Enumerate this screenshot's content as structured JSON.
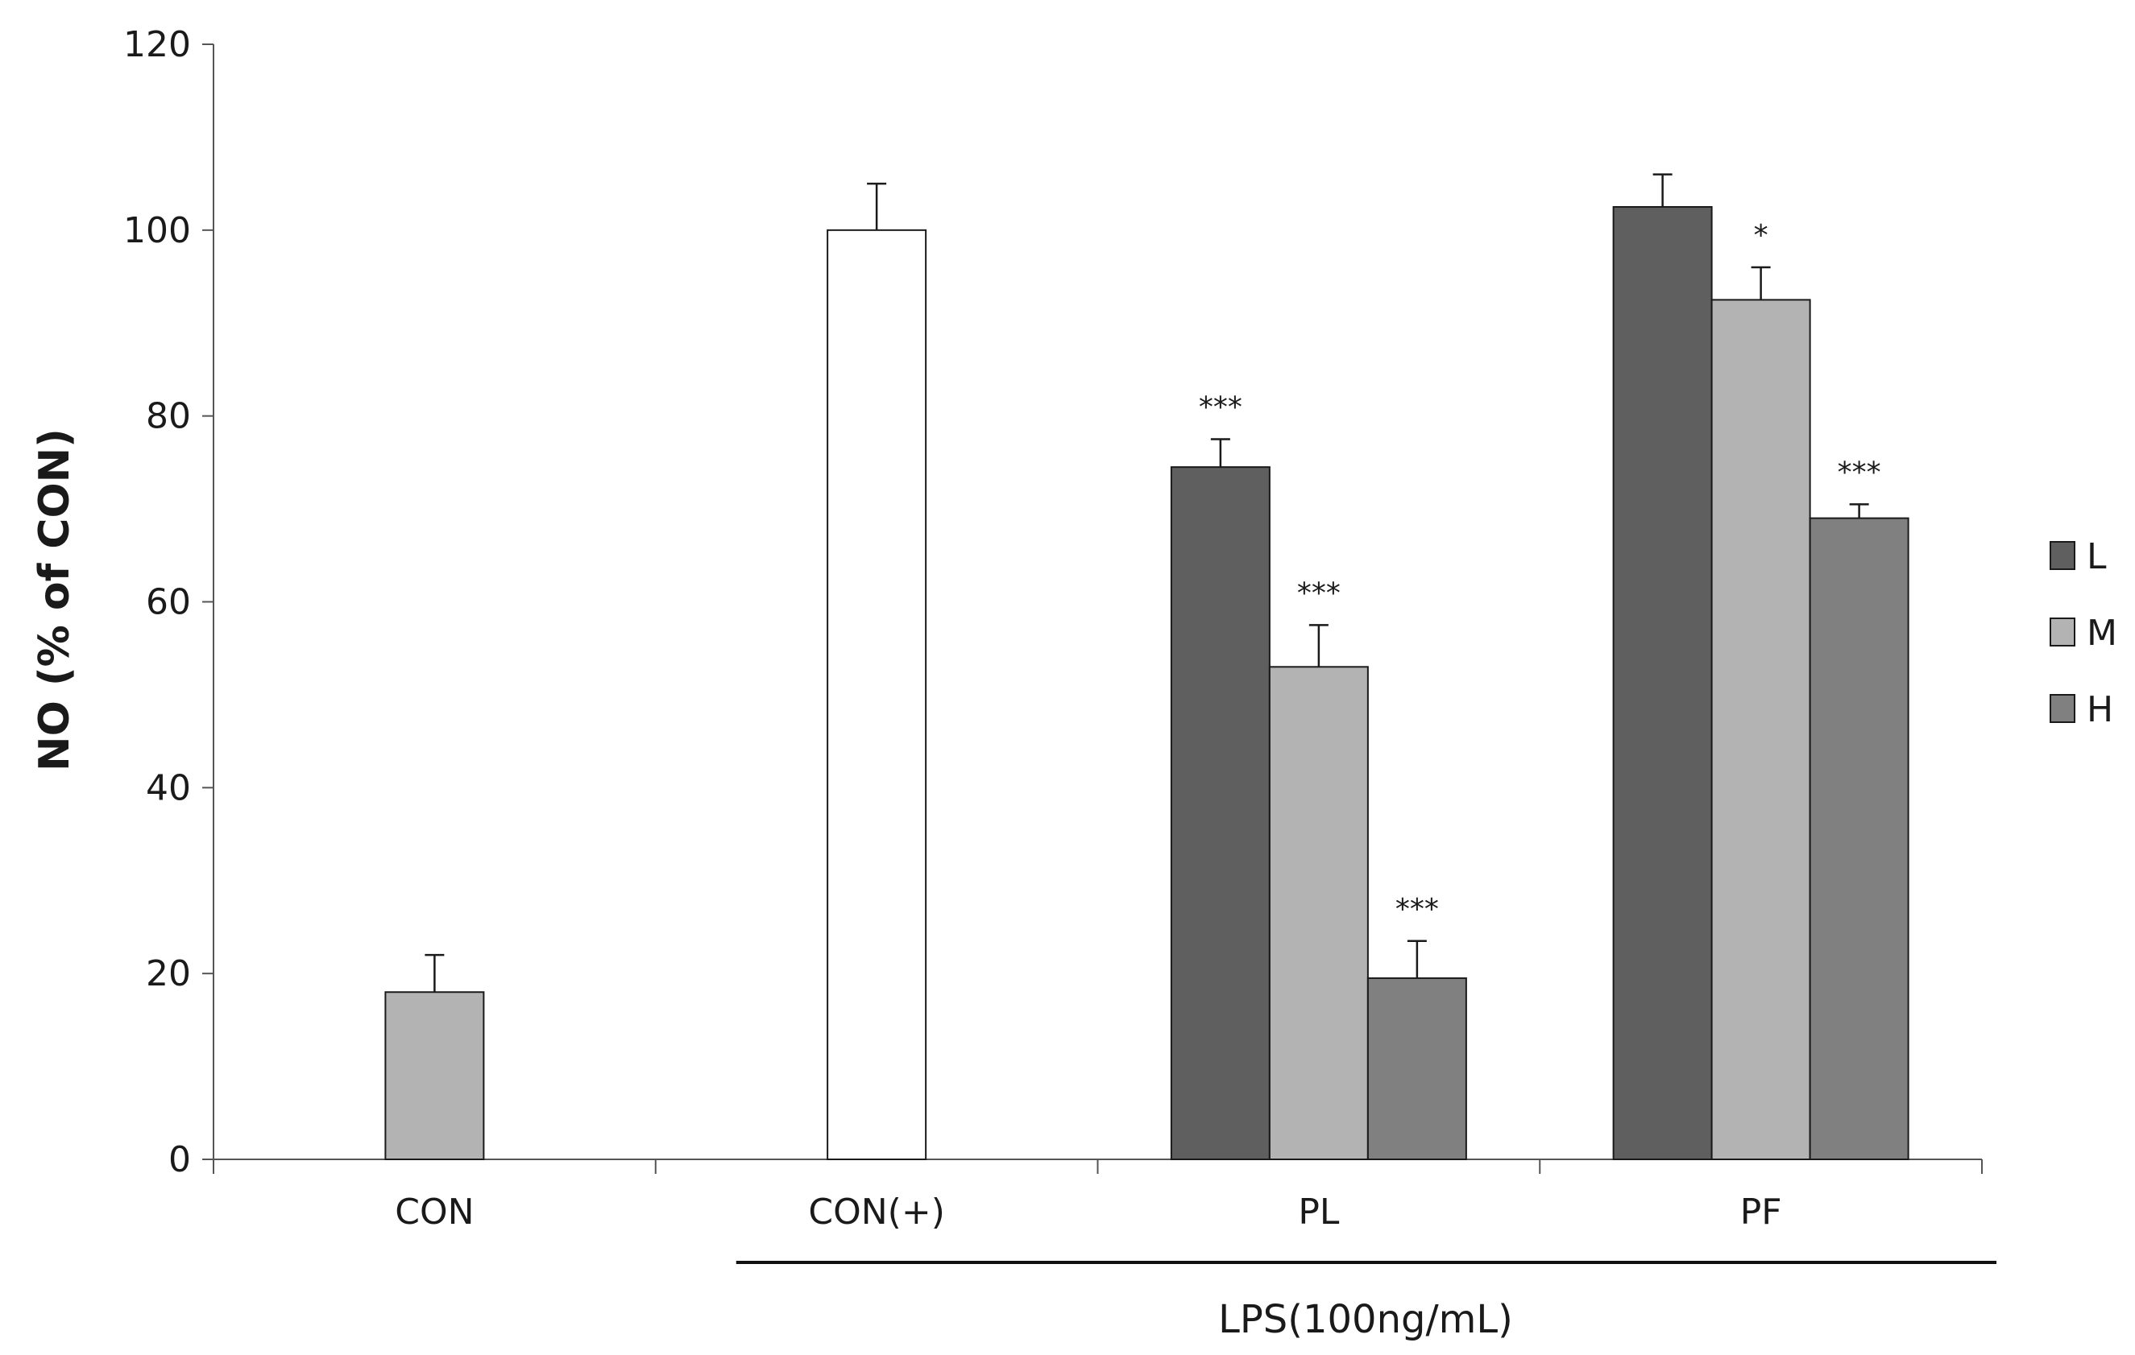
{
  "chart_data": {
    "type": "bar",
    "title": "",
    "xlabel": "",
    "ylabel": "NO (% of CON)",
    "ylim": [
      0,
      120
    ],
    "yticks": [
      "0",
      "20",
      "40",
      "60",
      "80",
      "100",
      "120"
    ],
    "categories": [
      "CON",
      "CON(+)",
      "PL",
      "PF"
    ],
    "group_label": "LPS(100ng/mL)",
    "legend": [
      "L",
      "M",
      "H"
    ],
    "colors": {
      "L": "#5f5f5f",
      "M": "#b3b3b3",
      "H": "#808080",
      "control": "#b3b3b3",
      "positive": "#ffffff",
      "outline": "#1a1a1a"
    },
    "bars": [
      {
        "category": "CON",
        "series": "control",
        "value": 18,
        "error": 4,
        "sig": ""
      },
      {
        "category": "CON(+)",
        "series": "positive",
        "value": 100,
        "error": 5,
        "sig": ""
      },
      {
        "category": "PL",
        "series": "L",
        "value": 74.5,
        "error": 3,
        "sig": "***"
      },
      {
        "category": "PL",
        "series": "M",
        "value": 53,
        "error": 4.5,
        "sig": "***"
      },
      {
        "category": "PL",
        "series": "H",
        "value": 19.5,
        "error": 4,
        "sig": "***"
      },
      {
        "category": "PF",
        "series": "L",
        "value": 102.5,
        "error": 3.5,
        "sig": ""
      },
      {
        "category": "PF",
        "series": "M",
        "value": 92.5,
        "error": 3.5,
        "sig": "*"
      },
      {
        "category": "PF",
        "series": "H",
        "value": 69,
        "error": 1.5,
        "sig": "***"
      }
    ]
  }
}
